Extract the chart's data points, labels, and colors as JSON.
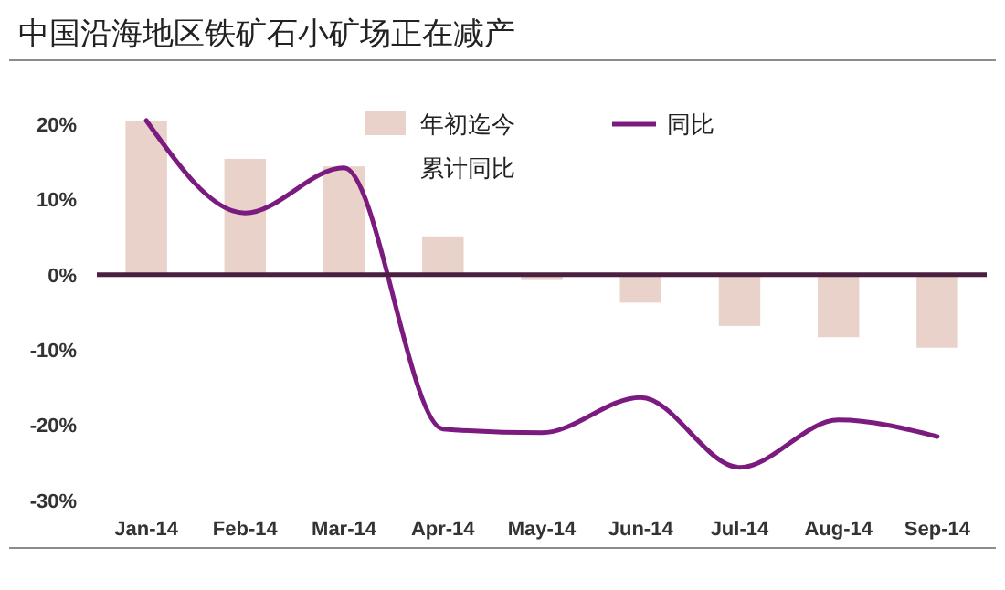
{
  "chart_data": {
    "type": "bar",
    "title": "中国沿海地区铁矿石小矿场正在减产",
    "categories": [
      "Jan-14",
      "Feb-14",
      "Mar-14",
      "Apr-14",
      "May-14",
      "Jun-14",
      "Jul-14",
      "Aug-14",
      "Sep-14"
    ],
    "series": [
      {
        "name": "年初迄今累计同比",
        "color": "#e8d2ca",
        "values": [
          20.5,
          15.4,
          14.4,
          5.1,
          -0.7,
          -3.7,
          -6.8,
          -8.3,
          -9.7
        ]
      },
      {
        "name": "同比",
        "type": "line",
        "color": "#7b1a7f",
        "values": [
          20.5,
          8.2,
          14.2,
          -20.5,
          -21,
          -16.3,
          -25.6,
          -19.3,
          -21.5
        ]
      }
    ],
    "ylim": [
      -30,
      22
    ],
    "yticks": [
      {
        "value": -30,
        "label": "-30%"
      },
      {
        "value": -20,
        "label": "-20%"
      },
      {
        "value": -10,
        "label": "-10%"
      },
      {
        "value": 0,
        "label": "0%"
      },
      {
        "value": 10,
        "label": "10%"
      },
      {
        "value": 20,
        "label": "20%"
      }
    ],
    "ref_lines": [
      {
        "axis": "y",
        "value": 0,
        "color": "#4a1f3f"
      }
    ],
    "legend": "top",
    "grid": false,
    "marker": "none",
    "line_style": "solid"
  }
}
